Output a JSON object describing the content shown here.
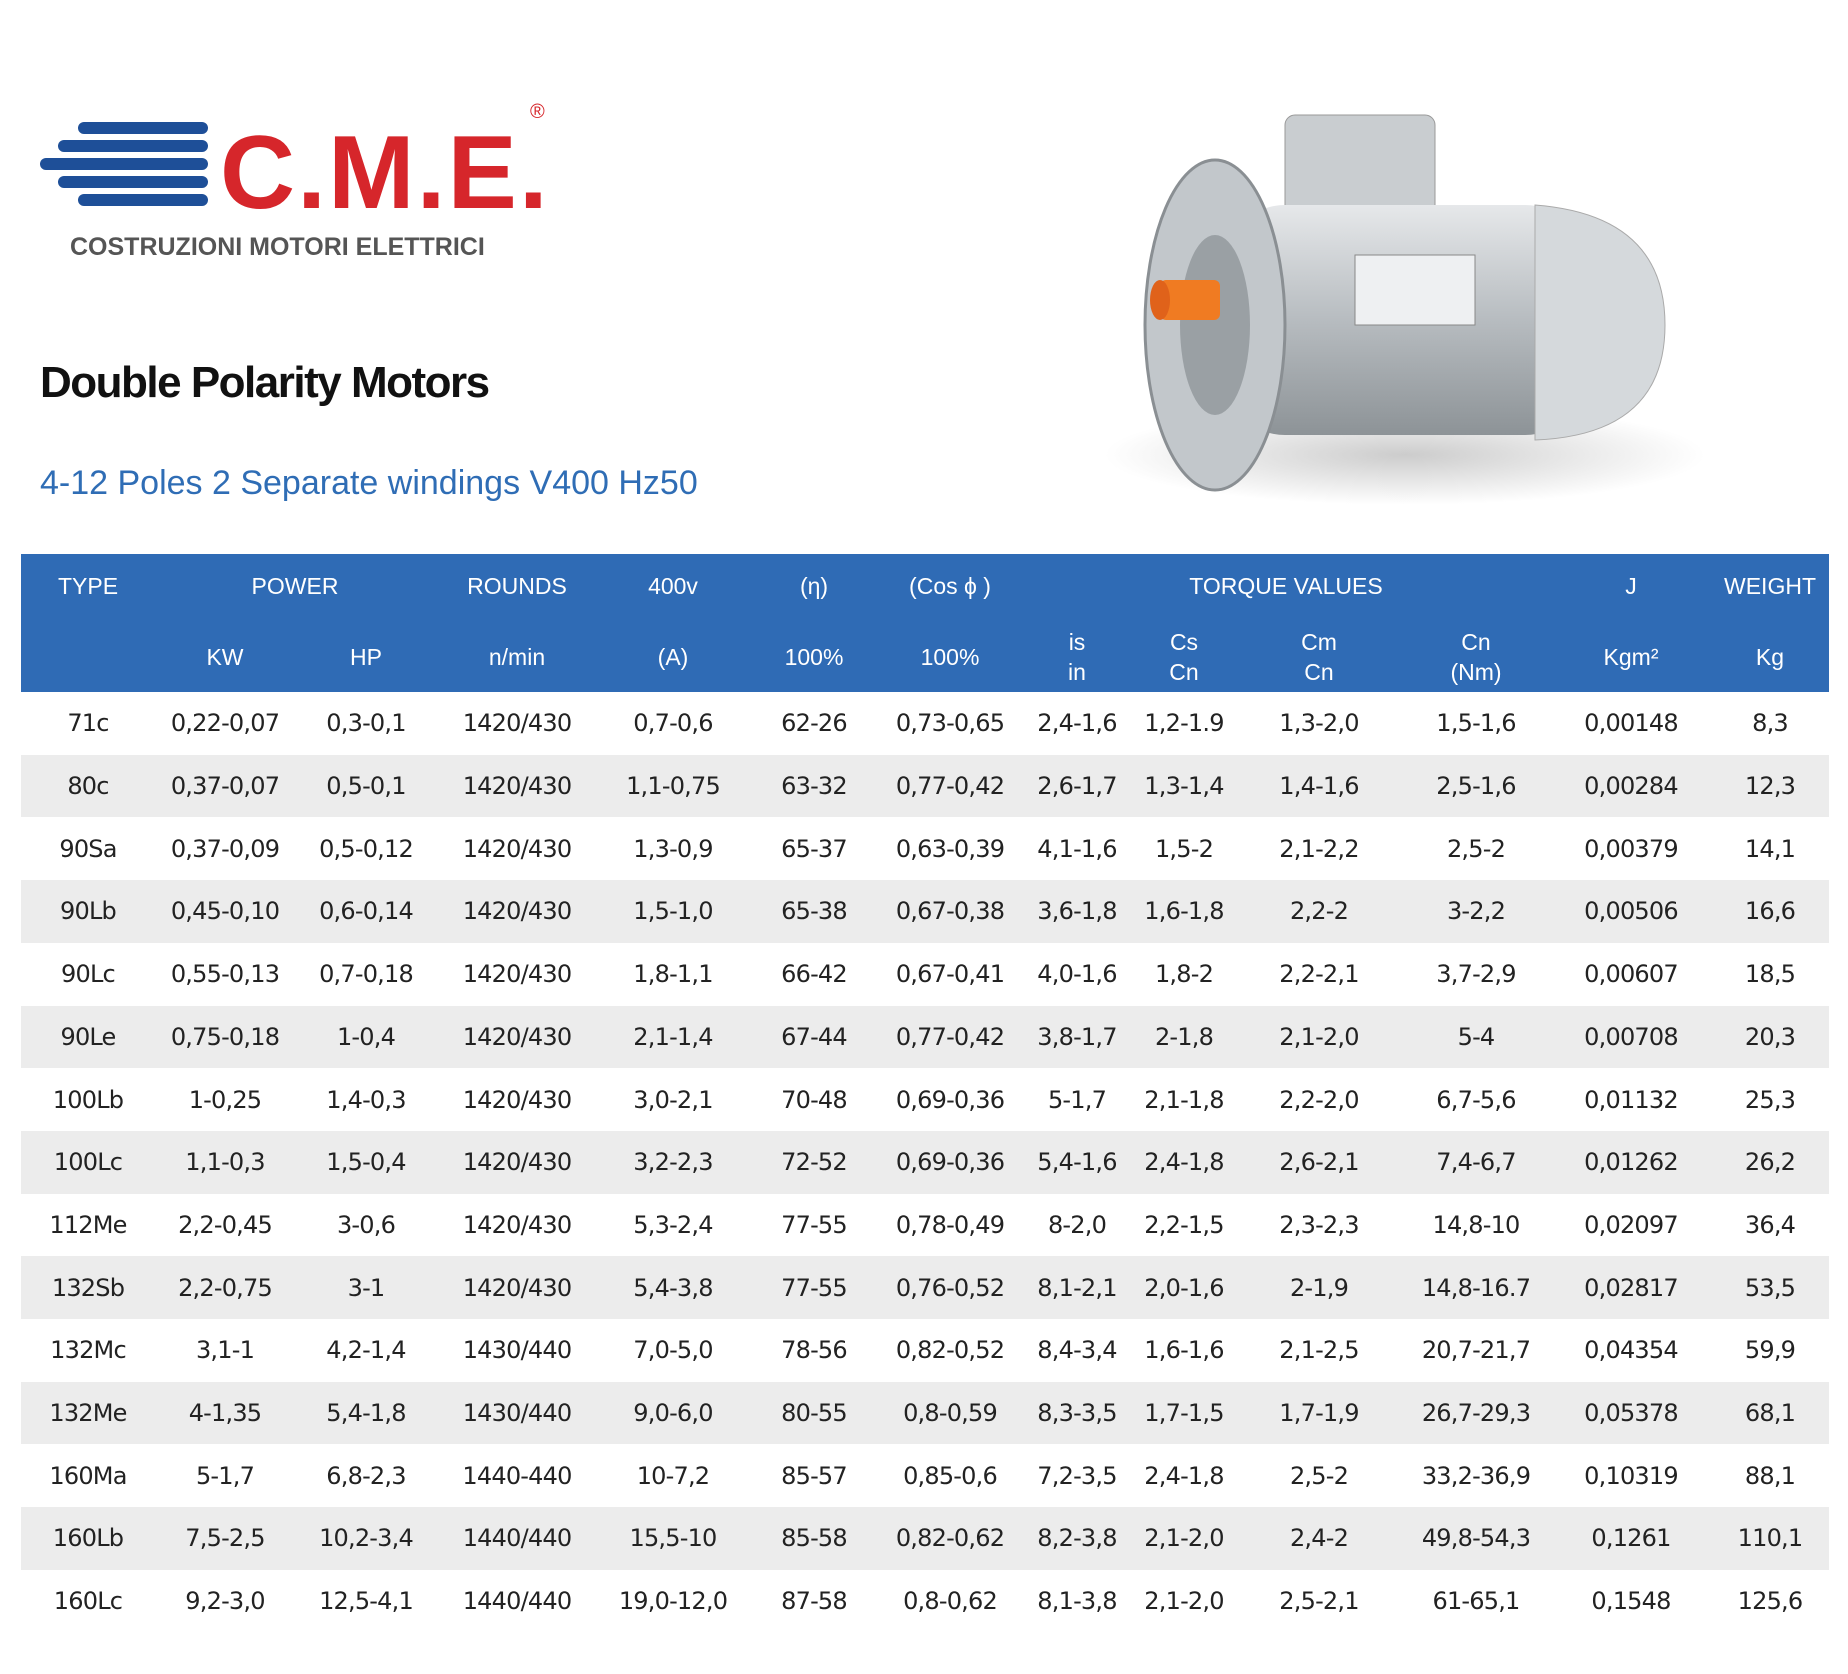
{
  "logo": {
    "brand": "C.M.E.",
    "registered": "®",
    "tagline": "COSTRUZIONI MOTORI ELETTRICI"
  },
  "title": "Double Polarity Motors",
  "subtitle": "4-12 Poles 2 Separate windings V400 Hz50",
  "table": {
    "header_top": [
      "TYPE",
      "POWER",
      "ROUNDS",
      "400v",
      "(η)",
      "(Cos ϕ )",
      "TORQUE VALUES",
      "J",
      "WEIGHT"
    ],
    "header_bottom": [
      [
        "KW"
      ],
      [
        "HP"
      ],
      [
        "n/min"
      ],
      [
        "(A)"
      ],
      [
        "100%"
      ],
      [
        "100%"
      ],
      [
        "is",
        "in"
      ],
      [
        "Cs",
        "Cn"
      ],
      [
        "Cm",
        "Cn"
      ],
      [
        "Cn",
        "(Nm)"
      ],
      [
        "Kgm²"
      ],
      [
        "Kg"
      ]
    ],
    "rows": [
      [
        "71c",
        "0,22-0,07",
        "0,3-0,1",
        "1420/430",
        "0,7-0,6",
        "62-26",
        "0,73-0,65",
        "2,4-1,6",
        "1,2-1.9",
        "1,3-2,0",
        "1,5-1,6",
        "0,00148",
        "8,3"
      ],
      [
        "80c",
        "0,37-0,07",
        "0,5-0,1",
        "1420/430",
        "1,1-0,75",
        "63-32",
        "0,77-0,42",
        "2,6-1,7",
        "1,3-1,4",
        "1,4-1,6",
        "2,5-1,6",
        "0,00284",
        "12,3"
      ],
      [
        "90Sa",
        "0,37-0,09",
        "0,5-0,12",
        "1420/430",
        "1,3-0,9",
        "65-37",
        "0,63-0,39",
        "4,1-1,6",
        "1,5-2",
        "2,1-2,2",
        "2,5-2",
        "0,00379",
        "14,1"
      ],
      [
        "90Lb",
        "0,45-0,10",
        "0,6-0,14",
        "1420/430",
        "1,5-1,0",
        "65-38",
        "0,67-0,38",
        "3,6-1,8",
        "1,6-1,8",
        "2,2-2",
        "3-2,2",
        "0,00506",
        "16,6"
      ],
      [
        "90Lc",
        "0,55-0,13",
        "0,7-0,18",
        "1420/430",
        "1,8-1,1",
        "66-42",
        "0,67-0,41",
        "4,0-1,6",
        "1,8-2",
        "2,2-2,1",
        "3,7-2,9",
        "0,00607",
        "18,5"
      ],
      [
        "90Le",
        "0,75-0,18",
        "1-0,4",
        "1420/430",
        "2,1-1,4",
        "67-44",
        "0,77-0,42",
        "3,8-1,7",
        "2-1,8",
        "2,1-2,0",
        "5-4",
        "0,00708",
        "20,3"
      ],
      [
        "100Lb",
        "1-0,25",
        "1,4-0,3",
        "1420/430",
        "3,0-2,1",
        "70-48",
        "0,69-0,36",
        "5-1,7",
        "2,1-1,8",
        "2,2-2,0",
        "6,7-5,6",
        "0,01132",
        "25,3"
      ],
      [
        "100Lc",
        "1,1-0,3",
        "1,5-0,4",
        "1420/430",
        "3,2-2,3",
        "72-52",
        "0,69-0,36",
        "5,4-1,6",
        "2,4-1,8",
        "2,6-2,1",
        "7,4-6,7",
        "0,01262",
        "26,2"
      ],
      [
        "112Me",
        "2,2-0,45",
        "3-0,6",
        "1420/430",
        "5,3-2,4",
        "77-55",
        "0,78-0,49",
        "8-2,0",
        "2,2-1,5",
        "2,3-2,3",
        "14,8-10",
        "0,02097",
        "36,4"
      ],
      [
        "132Sb",
        "2,2-0,75",
        "3-1",
        "1420/430",
        "5,4-3,8",
        "77-55",
        "0,76-0,52",
        "8,1-2,1",
        "2,0-1,6",
        "2-1,9",
        "14,8-16.7",
        "0,02817",
        "53,5"
      ],
      [
        "132Mc",
        "3,1-1",
        "4,2-1,4",
        "1430/440",
        "7,0-5,0",
        "78-56",
        "0,82-0,52",
        "8,4-3,4",
        "1,6-1,6",
        "2,1-2,5",
        "20,7-21,7",
        "0,04354",
        "59,9"
      ],
      [
        "132Me",
        "4-1,35",
        "5,4-1,8",
        "1430/440",
        "9,0-6,0",
        "80-55",
        "0,8-0,59",
        "8,3-3,5",
        "1,7-1,5",
        "1,7-1,9",
        "26,7-29,3",
        "0,05378",
        "68,1"
      ],
      [
        "160Ma",
        "5-1,7",
        "6,8-2,3",
        "1440-440",
        "10-7,2",
        "85-57",
        "0,85-0,6",
        "7,2-3,5",
        "2,4-1,8",
        "2,5-2",
        "33,2-36,9",
        "0,10319",
        "88,1"
      ],
      [
        "160Lb",
        "7,5-2,5",
        "10,2-3,4",
        "1440/440",
        "15,5-10",
        "85-58",
        "0,82-0,62",
        "8,2-3,8",
        "2,1-2,0",
        "2,4-2",
        "49,8-54,3",
        "0,1261",
        "110,1"
      ],
      [
        "160Lc",
        "9,2-3,0",
        "12,5-4,1",
        "1440/440",
        "19,0-12,0",
        "87-58",
        "0,8-0,62",
        "8,1-3,8",
        "2,1-2,0",
        "2,5-2,1",
        "61-65,1",
        "0,1548",
        "125,6"
      ]
    ]
  }
}
